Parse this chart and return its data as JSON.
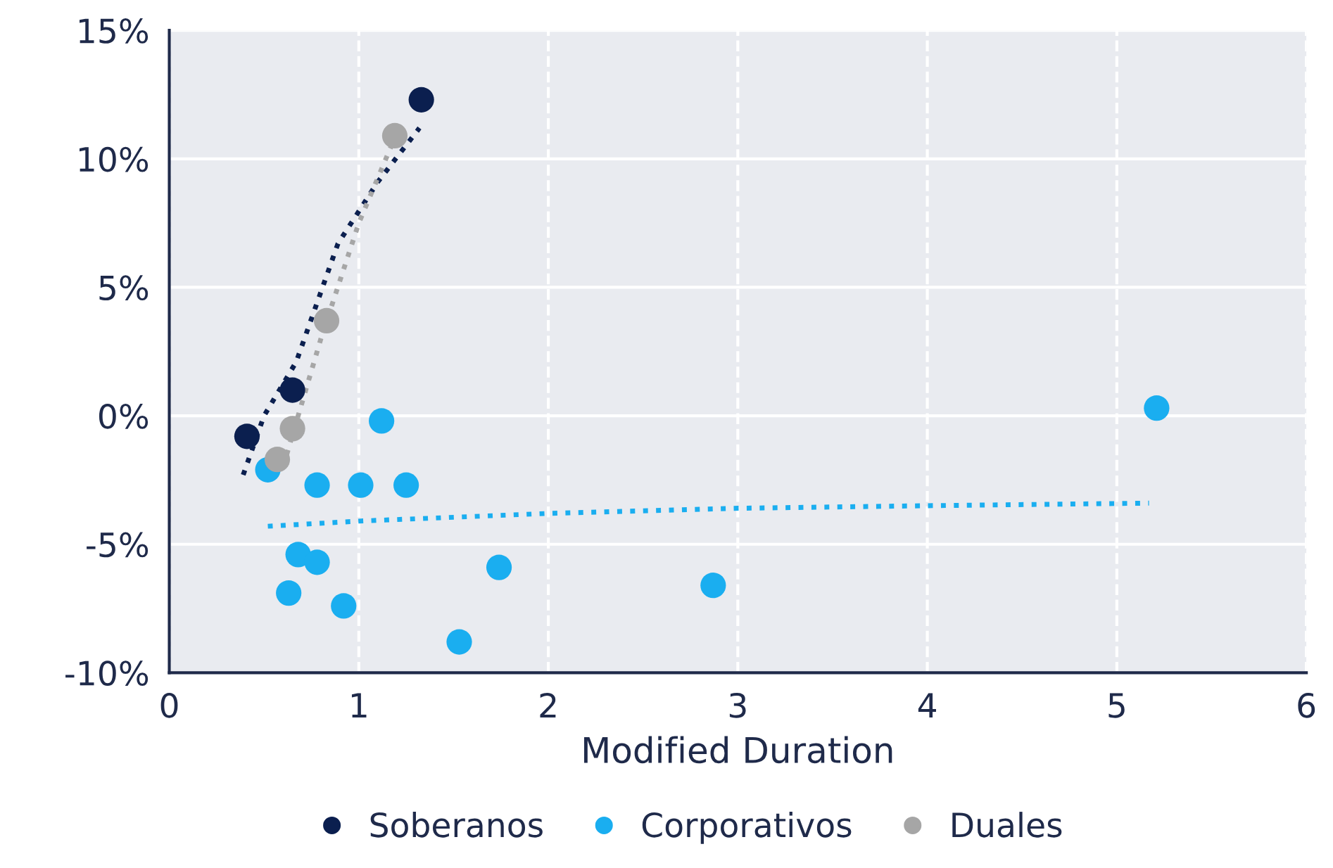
{
  "chart_data": {
    "type": "scatter",
    "xlabel": "Modified Duration",
    "xlim": [
      0,
      6
    ],
    "xticks": [
      0,
      1,
      2,
      3,
      4,
      5,
      6
    ],
    "ylim": [
      -10,
      15
    ],
    "yticks": [
      {
        "value": -10,
        "label": "-10%"
      },
      {
        "value": -5,
        "label": "-5%"
      },
      {
        "value": 0,
        "label": "0%"
      },
      {
        "value": 5,
        "label": "5%"
      },
      {
        "value": 10,
        "label": "10%"
      },
      {
        "value": 15,
        "label": "15%"
      }
    ],
    "grid": true,
    "legend": "bottom",
    "marker": "circle",
    "series": [
      {
        "name": "Soberanos",
        "color": "#0b1f4f",
        "x": [
          0.41,
          0.65,
          1.33
        ],
        "values": [
          -0.8,
          1.0,
          12.3
        ]
      },
      {
        "name": "Corporativos",
        "color": "#1aaef0",
        "x": [
          0.52,
          0.78,
          1.01,
          1.25,
          1.12,
          0.68,
          0.78,
          0.63,
          0.92,
          1.53,
          1.74,
          2.87,
          5.21
        ],
        "values": [
          -2.1,
          -2.7,
          -2.7,
          -2.7,
          -0.2,
          -5.4,
          -5.7,
          -6.9,
          -7.4,
          -8.8,
          -5.9,
          -6.6,
          0.3
        ]
      },
      {
        "name": "Duales",
        "color": "#a6a6a6",
        "x": [
          0.57,
          0.65,
          0.83,
          1.19
        ],
        "values": [
          -1.7,
          -0.5,
          3.7,
          10.9
        ]
      },
      {
        "type": "line",
        "line_style": "dotted",
        "marker": "none",
        "color": "#0b1f4f",
        "x": [
          0.39,
          0.5,
          0.67,
          0.89,
          1.1,
          1.32
        ],
        "values": [
          -2.3,
          0.0,
          2.1,
          6.7,
          9.1,
          11.2
        ]
      },
      {
        "type": "line",
        "line_style": "dotted",
        "marker": "none",
        "color": "#a6a6a6",
        "x": [
          0.6,
          0.8,
          1.0,
          1.2
        ],
        "values": [
          -2.0,
          3.0,
          7.5,
          11.0
        ]
      },
      {
        "type": "line",
        "line_style": "dotted",
        "marker": "none",
        "color": "#1aaef0",
        "x": [
          0.52,
          1,
          2,
          3,
          4,
          5.17
        ],
        "values": [
          -4.3,
          -4.1,
          -3.8,
          -3.6,
          -3.5,
          -3.4
        ]
      }
    ]
  }
}
